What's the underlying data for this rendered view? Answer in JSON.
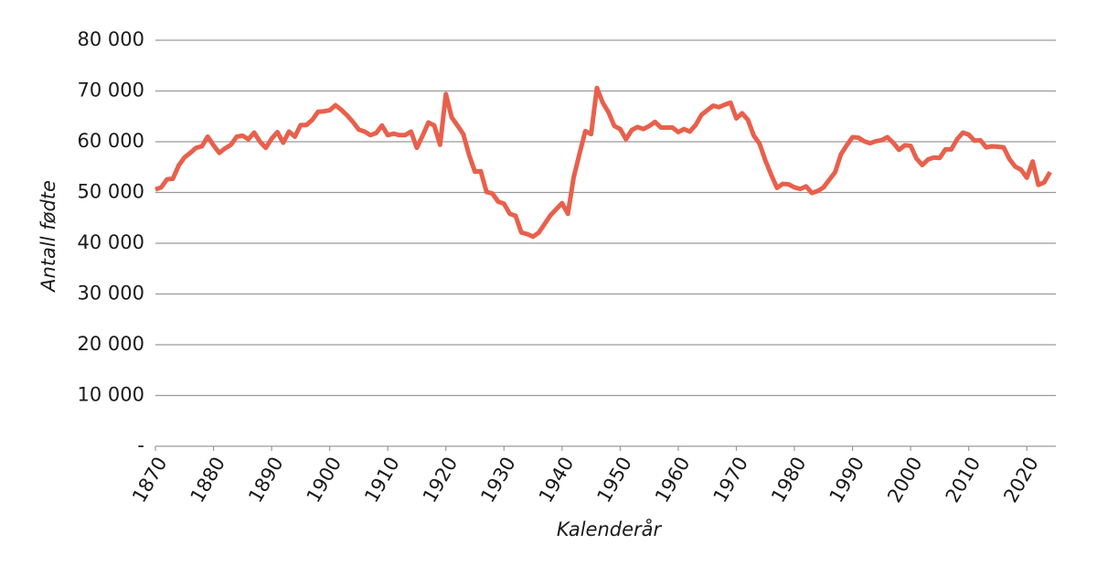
{
  "chart_data": {
    "type": "line",
    "x_label": "Kalenderår",
    "y_label": "Antall fødte",
    "x": [
      1870,
      1871,
      1872,
      1873,
      1874,
      1875,
      1876,
      1877,
      1878,
      1879,
      1880,
      1881,
      1882,
      1883,
      1884,
      1885,
      1886,
      1887,
      1888,
      1889,
      1890,
      1891,
      1892,
      1893,
      1894,
      1895,
      1896,
      1897,
      1898,
      1899,
      1900,
      1901,
      1902,
      1903,
      1904,
      1905,
      1906,
      1907,
      1908,
      1909,
      1910,
      1911,
      1912,
      1913,
      1914,
      1915,
      1916,
      1917,
      1918,
      1919,
      1920,
      1921,
      1922,
      1923,
      1924,
      1925,
      1926,
      1927,
      1928,
      1929,
      1930,
      1931,
      1932,
      1933,
      1934,
      1935,
      1936,
      1937,
      1938,
      1939,
      1940,
      1941,
      1942,
      1943,
      1944,
      1945,
      1946,
      1947,
      1948,
      1949,
      1950,
      1951,
      1952,
      1953,
      1954,
      1955,
      1956,
      1957,
      1958,
      1959,
      1960,
      1961,
      1962,
      1963,
      1964,
      1965,
      1966,
      1967,
      1968,
      1969,
      1970,
      1971,
      1972,
      1973,
      1974,
      1975,
      1976,
      1977,
      1978,
      1979,
      1980,
      1981,
      1982,
      1983,
      1984,
      1985,
      1986,
      1987,
      1988,
      1989,
      1990,
      1991,
      1992,
      1993,
      1994,
      1995,
      1996,
      1997,
      1998,
      1999,
      2000,
      2001,
      2002,
      2003,
      2004,
      2005,
      2006,
      2007,
      2008,
      2009,
      2010,
      2011,
      2012,
      2013,
      2014,
      2015,
      2016,
      2017,
      2018,
      2019,
      2020,
      2021,
      2022,
      2023,
      2024
    ],
    "series": [
      {
        "color": "#e8604c",
        "values": [
          50600,
          51000,
          52600,
          52700,
          55300,
          56900,
          57800,
          58800,
          59100,
          61000,
          59300,
          57800,
          58700,
          59400,
          61000,
          61200,
          60500,
          61800,
          60000,
          58800,
          60600,
          61900,
          59800,
          62000,
          61000,
          63300,
          63300,
          64300,
          65900,
          66000,
          66200,
          67200,
          66300,
          65200,
          63900,
          62400,
          62000,
          61300,
          61700,
          63200,
          61300,
          61600,
          61300,
          61300,
          62000,
          58800,
          61200,
          63800,
          63200,
          59400,
          69400,
          64800,
          63200,
          61500,
          57400,
          54100,
          54200,
          50100,
          49800,
          48200,
          47800,
          45800,
          45400,
          42100,
          41800,
          41300,
          42100,
          43800,
          45500,
          46700,
          47900,
          45800,
          53000,
          57600,
          62100,
          61500,
          70600,
          67700,
          65800,
          63100,
          62500,
          60500,
          62300,
          62900,
          62500,
          63100,
          63900,
          62800,
          62800,
          62800,
          61900,
          62500,
          62000,
          63300,
          65300,
          66200,
          67100,
          66800,
          67300,
          67700,
          64600,
          65600,
          64300,
          61200,
          59600,
          56300,
          53500,
          50900,
          51700,
          51600,
          51000,
          50700,
          51200,
          49900,
          50300,
          51000,
          52500,
          54000,
          57500,
          59300,
          60900,
          60800,
          60100,
          59700,
          60100,
          60300,
          60900,
          59800,
          58400,
          59300,
          59200,
          56700,
          55400,
          56500,
          56900,
          56800,
          58500,
          58500,
          60500,
          61800,
          61400,
          60200,
          60300,
          58900,
          59100,
          59000,
          58900,
          56600,
          55100,
          54500,
          52900,
          56100,
          51500,
          52000,
          54000
        ]
      }
    ],
    "xlim": [
      1870,
      2025
    ],
    "xticks": [
      1870,
      1880,
      1890,
      1900,
      1910,
      1920,
      1930,
      1940,
      1950,
      1960,
      1970,
      1980,
      1990,
      2000,
      2010,
      2020
    ],
    "ylim": [
      0,
      80000
    ],
    "yticks": [
      {
        "value": 0,
        "label": "-"
      },
      {
        "value": 10000,
        "label": "10 000"
      },
      {
        "value": 20000,
        "label": "20 000"
      },
      {
        "value": 30000,
        "label": "30 000"
      },
      {
        "value": 40000,
        "label": "40 000"
      },
      {
        "value": 50000,
        "label": "50 000"
      },
      {
        "value": 60000,
        "label": "60 000"
      },
      {
        "value": 70000,
        "label": "70 000"
      },
      {
        "value": 80000,
        "label": "80 000"
      }
    ],
    "grid": true
  }
}
